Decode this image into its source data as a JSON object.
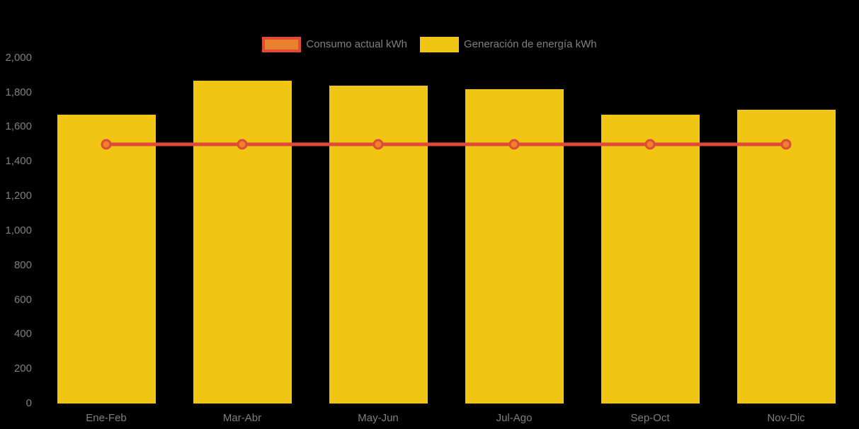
{
  "chart_data": {
    "type": "bar",
    "title": "",
    "xlabel": "",
    "ylabel": "",
    "categories": [
      "Ene-Feb",
      "Mar-Abr",
      "May-Jun",
      "Jul-Ago",
      "Sep-Oct",
      "Nov-Dic"
    ],
    "series": [
      {
        "name": "Consumo actual kWh",
        "type": "line",
        "values": [
          1500,
          1500,
          1500,
          1500,
          1500,
          1500
        ],
        "line_color": "#E04B39",
        "marker_fill": "#E8822C"
      },
      {
        "name": "Generación de energía kWh",
        "type": "bar",
        "values": [
          1670,
          1870,
          1840,
          1820,
          1670,
          1700
        ],
        "bar_color": "#F0C514"
      }
    ],
    "ylim": [
      0,
      2000
    ],
    "ytick_interval": 200,
    "ytick_labels": [
      "0",
      "200",
      "400",
      "600",
      "800",
      "1,000",
      "1,200",
      "1,400",
      "1,600",
      "1,800",
      "2,000"
    ],
    "grid": false,
    "legend_position": "top"
  },
  "legend": {
    "consumo_label": "Consumo actual kWh",
    "generacion_label": "Generación de energía kWh"
  },
  "colors": {
    "background": "#000000",
    "bar_yellow": "#F0C514",
    "line_red": "#E04B39",
    "marker_orange": "#E8822C",
    "axis_text_gray": "#7f7f7f"
  }
}
